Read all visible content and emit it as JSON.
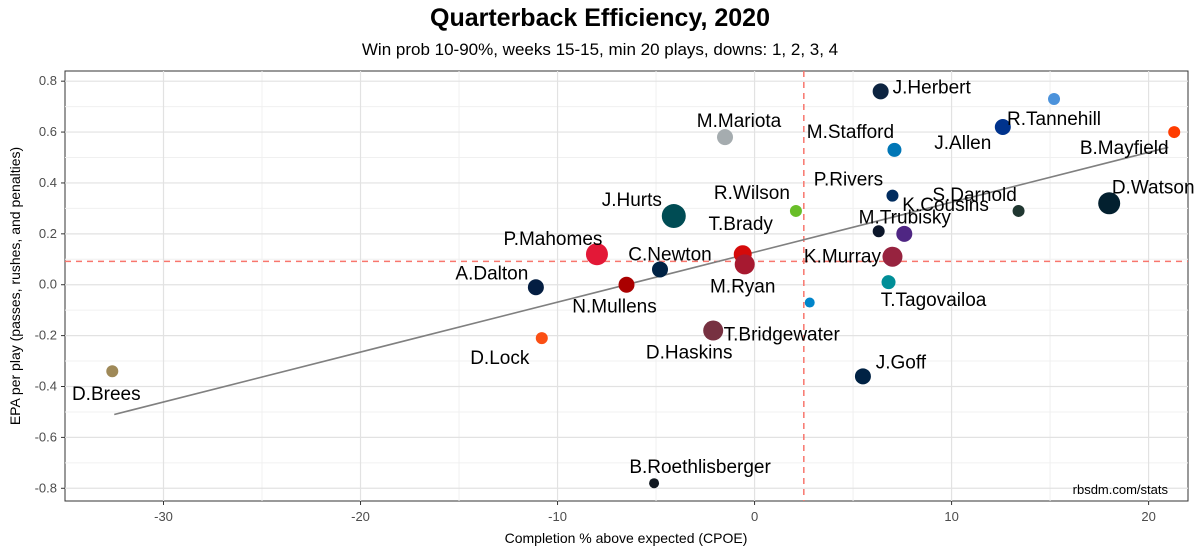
{
  "chart_data": {
    "type": "scatter",
    "title": "Quarterback Efficiency, 2020",
    "subtitle": "Win prob 10-90%, weeks 15-15, min 20 plays, downs: 1, 2, 3, 4",
    "xlabel": "Completion % above expected (CPOE)",
    "ylabel": "EPA per play (passes, rushes, and penalties)",
    "caption": "rbsdm.com/stats",
    "xlim": [
      -35,
      22
    ],
    "ylim": [
      -0.85,
      0.84
    ],
    "x_ticks": [
      -30,
      -20,
      -10,
      0,
      10,
      20
    ],
    "y_ticks": [
      -0.8,
      -0.6,
      -0.4,
      -0.2,
      0.0,
      0.2,
      0.4,
      0.6,
      0.8
    ],
    "x_tick_labels": [
      "-30",
      "-20",
      "-10",
      "0",
      "10",
      "20"
    ],
    "y_tick_labels": [
      "-0.8",
      "-0.6",
      "-0.4",
      "-0.2",
      "0.0",
      "0.2",
      "0.4",
      "0.6",
      "0.8"
    ],
    "reference_lines": {
      "vertical_x": 2.5,
      "horizontal_y": 0.092,
      "color": "#f8766d"
    },
    "trend_line": {
      "x": [
        -32.5,
        21.0
      ],
      "y": [
        -0.51,
        0.54
      ],
      "color": "#808080"
    },
    "points": [
      {
        "name": "J.Herbert",
        "x": 6.4,
        "y": 0.76,
        "color": "#0c2340",
        "size": 8
      },
      {
        "name": "R.Tannehill",
        "x": 15.2,
        "y": 0.73,
        "color": "#4b92db",
        "size": 6
      },
      {
        "name": "B.Mayfield",
        "x": 21.3,
        "y": 0.6,
        "color": "#ff3c00",
        "size": 6
      },
      {
        "name": "M.Mariota",
        "x": -1.5,
        "y": 0.58,
        "color": "#a5acaf",
        "size": 8
      },
      {
        "name": "J.Allen",
        "x": 12.6,
        "y": 0.62,
        "color": "#00338d",
        "size": 8
      },
      {
        "name": "M.Stafford",
        "x": 7.1,
        "y": 0.53,
        "color": "#0076b6",
        "size": 7
      },
      {
        "name": "P.Rivers",
        "x": 7.0,
        "y": 0.35,
        "color": "#002c5f",
        "size": 6
      },
      {
        "name": "S.Darnold",
        "x": 13.4,
        "y": 0.29,
        "color": "#203731",
        "size": 6
      },
      {
        "name": "D.Watson",
        "x": 18.0,
        "y": 0.32,
        "color": "#03202f",
        "size": 11
      },
      {
        "name": "J.Hurts",
        "x": -4.1,
        "y": 0.27,
        "color": "#004c54",
        "size": 12
      },
      {
        "name": "R.Wilson",
        "x": 2.1,
        "y": 0.29,
        "color": "#69be28",
        "size": 6
      },
      {
        "name": "M.Trubisky",
        "x": 6.3,
        "y": 0.21,
        "color": "#0b162a",
        "size": 6
      },
      {
        "name": "K.Cousins",
        "x": 7.6,
        "y": 0.2,
        "color": "#4f2683",
        "size": 8
      },
      {
        "name": "K.Murray",
        "x": 7.0,
        "y": 0.11,
        "color": "#97233f",
        "size": 10
      },
      {
        "name": "T.Brady",
        "x": -0.6,
        "y": 0.12,
        "color": "#d50a0a",
        "size": 9
      },
      {
        "name": "M.Ryan",
        "x": -0.5,
        "y": 0.08,
        "color": "#a71930",
        "size": 10
      },
      {
        "name": "P.Mahomes",
        "x": -8.0,
        "y": 0.12,
        "color": "#e31837",
        "size": 11
      },
      {
        "name": "C.Newton",
        "x": -4.8,
        "y": 0.06,
        "color": "#002244",
        "size": 8
      },
      {
        "name": "N.Mullens",
        "x": -6.5,
        "y": 0.0,
        "color": "#aa0000",
        "size": 8
      },
      {
        "name": "A.Dalton",
        "x": -11.1,
        "y": -0.01,
        "color": "#041e42",
        "size": 8
      },
      {
        "name": "T.Tagovailoa",
        "x": 6.8,
        "y": 0.01,
        "color": "#008e97",
        "size": 7
      },
      {
        "name": "T.Bridgewater",
        "x": 2.8,
        "y": -0.07,
        "color": "#0085ca",
        "size": 5
      },
      {
        "name": "D.Haskins",
        "x": -2.1,
        "y": -0.18,
        "color": "#773141",
        "size": 10
      },
      {
        "name": "D.Lock",
        "x": -10.8,
        "y": -0.21,
        "color": "#fb4f14",
        "size": 6
      },
      {
        "name": "J.Goff",
        "x": 5.5,
        "y": -0.36,
        "color": "#002244",
        "size": 8
      },
      {
        "name": "D.Brees",
        "x": -32.6,
        "y": -0.34,
        "color": "#9f8958",
        "size": 6
      },
      {
        "name": "B.Roethlisberger",
        "x": -5.1,
        "y": -0.78,
        "color": "#101820",
        "size": 5
      }
    ]
  }
}
